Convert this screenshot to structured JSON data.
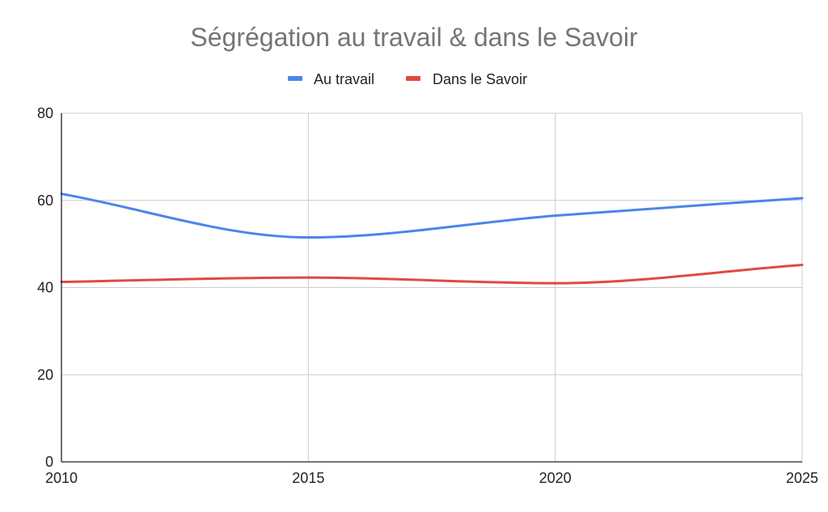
{
  "chart_data": {
    "type": "line",
    "title": "Ségrégation au travail & dans le Savoir",
    "x": [
      2010,
      2015,
      2020,
      2025
    ],
    "x_ticks": [
      "2010",
      "2015",
      "2020",
      "2025"
    ],
    "y_ticks": [
      "0",
      "20",
      "40",
      "60",
      "80"
    ],
    "xlim": [
      2010,
      2025
    ],
    "ylim": [
      0,
      80
    ],
    "grid": true,
    "smooth": true,
    "legend_position": "top",
    "series": [
      {
        "name": "Au travail",
        "color": "#4a86e8",
        "values": [
          61.5,
          51.5,
          56.5,
          60.5
        ]
      },
      {
        "name": "Dans le Savoir",
        "color": "#e04a3f",
        "values": [
          41.3,
          42.3,
          41.0,
          45.2
        ]
      }
    ]
  }
}
